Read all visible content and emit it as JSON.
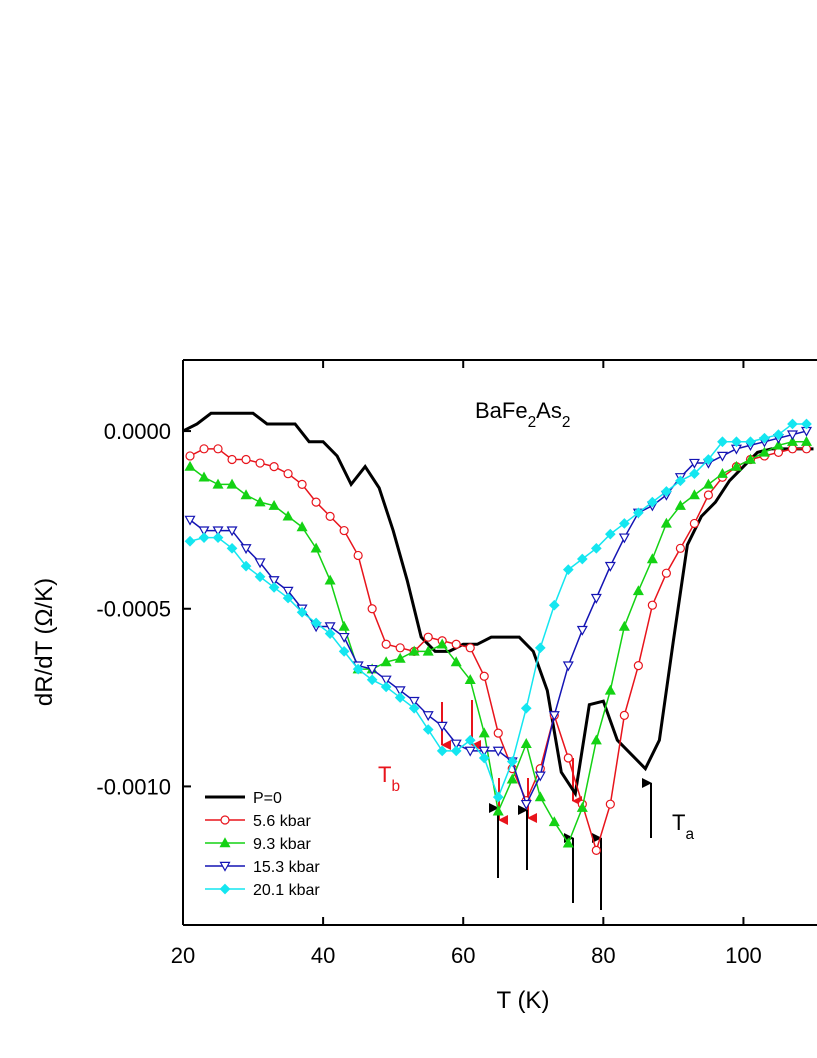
{
  "chart_data": {
    "type": "line",
    "title": [
      {
        "text": "BaFe"
      },
      {
        "text": "2",
        "sub": true
      },
      {
        "text": "As"
      },
      {
        "text": "2",
        "sub": true
      }
    ],
    "x_label": "T (K)",
    "y_label": "dR/dT (Ω/K)",
    "xlim": [
      20,
      110.5
    ],
    "xticks": [
      20,
      40,
      60,
      80,
      100
    ],
    "ylim": [
      -0.00139,
      0.0002
    ],
    "yticks": [
      {
        "value": 0,
        "label": "0.0000"
      },
      -0.0005,
      {
        "value": -0.001,
        "label": "-0.0010"
      }
    ],
    "legend": "lower left",
    "annotations": [
      {
        "parts": [
          {
            "text": "T"
          },
          {
            "text": "b",
            "sub": true
          }
        ],
        "color": "#e8141c"
      },
      {
        "parts": [
          {
            "text": "T"
          },
          {
            "text": "a",
            "sub": true
          }
        ],
        "color": "#000000"
      }
    ],
    "series": [
      {
        "name": "P=0",
        "color": "#000000",
        "marker": "none",
        "x": [
          20,
          22,
          24,
          26,
          28,
          30,
          32,
          34,
          36,
          38,
          40,
          42,
          44,
          46,
          48,
          50,
          52,
          54,
          56,
          58,
          60,
          62,
          64,
          66,
          68,
          70,
          72,
          74,
          76,
          78,
          80,
          82,
          84,
          86,
          88,
          90,
          92,
          94,
          96,
          98,
          100,
          102,
          104,
          106,
          108,
          110
        ],
        "values": [
          0,
          2e-05,
          5e-05,
          5e-05,
          5e-05,
          5e-05,
          2e-05,
          2e-05,
          2e-05,
          -3e-05,
          -3e-05,
          -7e-05,
          -0.00015,
          -0.0001,
          -0.00016,
          -0.00028,
          -0.00042,
          -0.00058,
          -0.00062,
          -0.00062,
          -0.0006,
          -0.0006,
          -0.00058,
          -0.00058,
          -0.00058,
          -0.00062,
          -0.00073,
          -0.00096,
          -0.00102,
          -0.00077,
          -0.00076,
          -0.00087,
          -0.00091,
          -0.00095,
          -0.00087,
          -0.00059,
          -0.00032,
          -0.00024,
          -0.0002,
          -0.00014,
          -0.0001,
          -6e-05,
          -5e-05,
          -5e-05,
          -5e-05,
          -5e-05
        ]
      },
      {
        "name": "5.6 kbar",
        "color": "#e8141c",
        "marker": "circle-open",
        "x": [
          21,
          23,
          25,
          27,
          29,
          31,
          33,
          35,
          37,
          39,
          41,
          43,
          45,
          47,
          49,
          51,
          53,
          55,
          57,
          59,
          61,
          63,
          65,
          67,
          69,
          71,
          73,
          75,
          77,
          79,
          81,
          83,
          85,
          87,
          89,
          91,
          93,
          95,
          97,
          99,
          101,
          103,
          105,
          107,
          109
        ],
        "values": [
          -7e-05,
          -5e-05,
          -5e-05,
          -8e-05,
          -8e-05,
          -9e-05,
          -0.0001,
          -0.00012,
          -0.00015,
          -0.0002,
          -0.00024,
          -0.00028,
          -0.00035,
          -0.0005,
          -0.0006,
          -0.00061,
          -0.00062,
          -0.00058,
          -0.00059,
          -0.0006,
          -0.00061,
          -0.00069,
          -0.00085,
          -0.00095,
          -0.00104,
          -0.00095,
          -0.0008,
          -0.00092,
          -0.00105,
          -0.00118,
          -0.00105,
          -0.0008,
          -0.00066,
          -0.00049,
          -0.0004,
          -0.00033,
          -0.00026,
          -0.00018,
          -0.00013,
          -0.0001,
          -8e-05,
          -7e-05,
          -6e-05,
          -5e-05,
          -5e-05
        ]
      },
      {
        "name": "9.3 kbar",
        "color": "#14d214",
        "marker": "triangle-up",
        "x": [
          21,
          23,
          25,
          27,
          29,
          31,
          33,
          35,
          37,
          39,
          41,
          43,
          45,
          47,
          49,
          51,
          53,
          55,
          57,
          59,
          61,
          63,
          65,
          67,
          69,
          71,
          73,
          75,
          77,
          79,
          81,
          83,
          85,
          87,
          89,
          91,
          93,
          95,
          97,
          99,
          101,
          103,
          105,
          107,
          109
        ],
        "values": [
          -0.0001,
          -0.00013,
          -0.00015,
          -0.00015,
          -0.00018,
          -0.0002,
          -0.00021,
          -0.00024,
          -0.00027,
          -0.00033,
          -0.00042,
          -0.00055,
          -0.00067,
          -0.00067,
          -0.00065,
          -0.00064,
          -0.00062,
          -0.00062,
          -0.0006,
          -0.00065,
          -0.0007,
          -0.00085,
          -0.00107,
          -0.00098,
          -0.00088,
          -0.00103,
          -0.0011,
          -0.00116,
          -0.00106,
          -0.00087,
          -0.00073,
          -0.00055,
          -0.00045,
          -0.00036,
          -0.00026,
          -0.00021,
          -0.00018,
          -0.00015,
          -0.00012,
          -0.0001,
          -8e-05,
          -6e-05,
          -4e-05,
          -3e-05,
          -3e-05
        ]
      },
      {
        "name": "15.3 kbar",
        "color": "#1414b4",
        "marker": "triangle-down-open",
        "x": [
          21,
          23,
          25,
          27,
          29,
          31,
          33,
          35,
          37,
          39,
          41,
          43,
          45,
          47,
          49,
          51,
          53,
          55,
          57,
          59,
          61,
          63,
          65,
          67,
          69,
          71,
          73,
          75,
          77,
          79,
          81,
          83,
          85,
          87,
          89,
          91,
          93,
          95,
          97,
          99,
          101,
          103,
          105,
          107,
          109
        ],
        "values": [
          -0.00025,
          -0.00028,
          -0.00028,
          -0.00028,
          -0.00033,
          -0.00037,
          -0.00042,
          -0.00045,
          -0.0005,
          -0.00055,
          -0.00055,
          -0.00058,
          -0.00066,
          -0.00067,
          -0.0007,
          -0.00073,
          -0.00076,
          -0.0008,
          -0.00083,
          -0.00088,
          -0.0009,
          -0.0009,
          -0.0009,
          -0.00093,
          -0.00105,
          -0.00097,
          -0.0008,
          -0.00066,
          -0.00056,
          -0.00047,
          -0.00038,
          -0.0003,
          -0.00023,
          -0.00021,
          -0.00018,
          -0.00013,
          -9e-05,
          -9e-05,
          -7e-05,
          -5e-05,
          -4e-05,
          -3e-05,
          -2e-05,
          -1e-05,
          0
        ]
      },
      {
        "name": "20.1 kbar",
        "color": "#14e6f0",
        "marker": "diamond",
        "x": [
          21,
          23,
          25,
          27,
          29,
          31,
          33,
          35,
          37,
          39,
          41,
          43,
          45,
          47,
          49,
          51,
          53,
          55,
          57,
          59,
          61,
          63,
          65,
          67,
          69,
          71,
          73,
          75,
          77,
          79,
          81,
          83,
          85,
          87,
          89,
          91,
          93,
          95,
          97,
          99,
          101,
          103,
          105,
          107,
          109
        ],
        "values": [
          -0.00031,
          -0.0003,
          -0.0003,
          -0.00033,
          -0.00038,
          -0.00041,
          -0.00044,
          -0.00047,
          -0.00051,
          -0.00054,
          -0.00057,
          -0.00062,
          -0.00067,
          -0.0007,
          -0.00072,
          -0.00075,
          -0.00078,
          -0.00084,
          -0.0009,
          -0.0009,
          -0.00087,
          -0.00092,
          -0.00103,
          -0.00093,
          -0.00078,
          -0.00061,
          -0.00049,
          -0.00039,
          -0.00036,
          -0.00033,
          -0.00029,
          -0.00026,
          -0.00023,
          -0.0002,
          -0.00017,
          -0.00014,
          -0.00012,
          -8e-05,
          -3e-05,
          -3e-05,
          -3e-05,
          -2e-05,
          -1e-05,
          2e-05,
          2e-05
        ]
      }
    ]
  }
}
